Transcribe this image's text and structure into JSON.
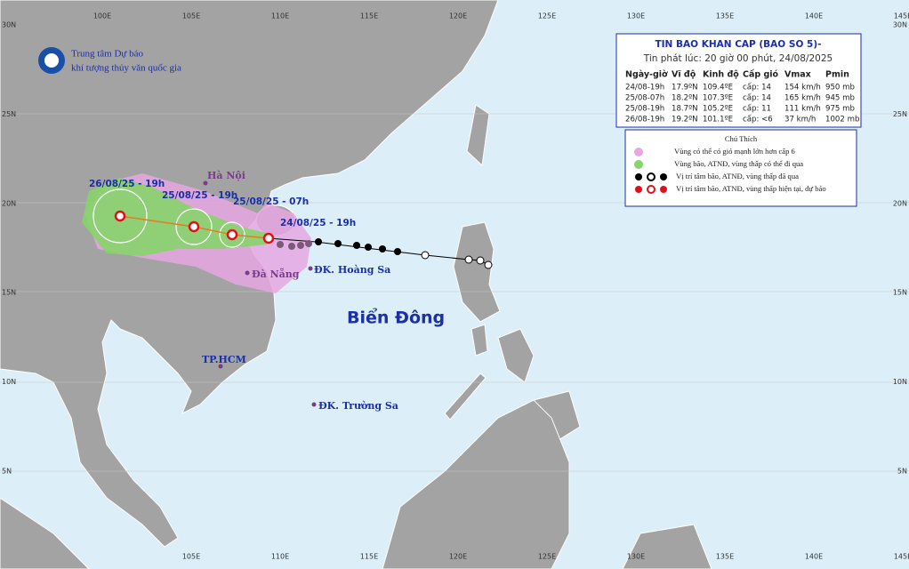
{
  "header": {
    "title": "TIN BAO KHAN CAP (BAO SO 5)-",
    "subtitle": "Tin phát lúc: 20 giờ 00 phút, 24/08/2025"
  },
  "organization": [
    "Trung tâm Dự báo",
    "khí tượng thủy văn quốc gia"
  ],
  "table": {
    "columns": [
      "Ngày-giờ",
      "Vĩ độ",
      "Kinh độ",
      "Cấp gió",
      "Vmax",
      "Pmin"
    ],
    "rows": [
      [
        "24/08-19h",
        "17.9ºN",
        "109.4ºE",
        "cấp: 14",
        "154 km/h",
        "950 mb"
      ],
      [
        "25/08-07h",
        "18.2ºN",
        "107.3ºE",
        "cấp: 14",
        "165 km/h",
        "945 mb"
      ],
      [
        "25/08-19h",
        "18.7ºN",
        "105.2ºE",
        "cấp: 11",
        "111 km/h",
        "975 mb"
      ],
      [
        "26/08-19h",
        "19.2ºN",
        "101.1ºE",
        "cấp: <6",
        "37 km/h",
        "1002 mb"
      ]
    ]
  },
  "legend": {
    "title": "Chú Thích",
    "items": [
      "Vùng có thể có gió mạnh lớn hơn cấp 6",
      "Vùng bão, ATNĐ, vùng thấp có thể đi qua",
      "Vị trí tâm bão, ATNĐ, vùng thấp đã qua",
      "Vị trí tâm bão, ATNĐ, vùng thấp hiện tại, dự báo"
    ]
  },
  "track_labels": [
    "26/08/25 - 19h",
    "25/08/25 - 19h",
    "25/08/25 - 07h",
    "24/08/25 - 19h"
  ],
  "places": [
    "Hà Nội",
    "Đà Nẵng",
    "ĐK. Hoàng Sa",
    "Biển Đông",
    "TP.HCM",
    "ĐK. Trường Sa"
  ],
  "longitudes": [
    "100E",
    "105E",
    "110E",
    "115E",
    "120E",
    "125E",
    "130E",
    "135E",
    "140E",
    "145E"
  ],
  "latitudes": [
    "30N",
    "25N",
    "20N",
    "15N",
    "10N",
    "5N"
  ]
}
